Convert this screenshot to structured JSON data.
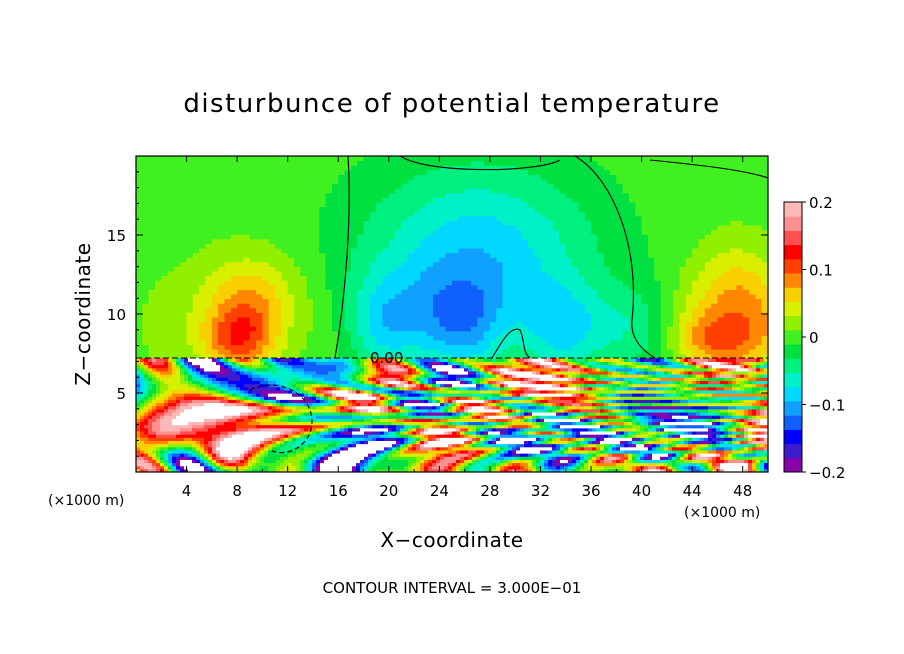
{
  "chart_data": {
    "type": "heatmap",
    "title": "disturbunce of potential temperature",
    "xlabel": "X−coordinate",
    "ylabel": "Z−coordinate",
    "x_unit": "(×1000 m)",
    "y_unit": "(×1000 m)",
    "xlim": [
      0,
      50
    ],
    "ylim": [
      0,
      20
    ],
    "x_ticks": [
      "4",
      "8",
      "12",
      "16",
      "20",
      "24",
      "28",
      "32",
      "36",
      "40",
      "44",
      "48"
    ],
    "y_ticks": [
      "5",
      "10",
      "15"
    ],
    "colorbar": {
      "range": [
        -0.2,
        0.2
      ],
      "ticks": [
        "0.2",
        "0.1",
        "0",
        "−0.1",
        "−0.2"
      ],
      "colors": [
        "#8a00aa",
        "#3c1ccc",
        "#0000ff",
        "#1060ff",
        "#10a0ff",
        "#00d8ff",
        "#00f0c8",
        "#00f080",
        "#00e040",
        "#40f020",
        "#90f000",
        "#d8f000",
        "#f8d000",
        "#ff8800",
        "#ff4000",
        "#ff0000",
        "#ff5050",
        "#ff9090",
        "#ffb8b8"
      ]
    },
    "contour_label": "0.00",
    "contour_interval": "CONTOUR INTERVAL = 3.000E−01"
  }
}
